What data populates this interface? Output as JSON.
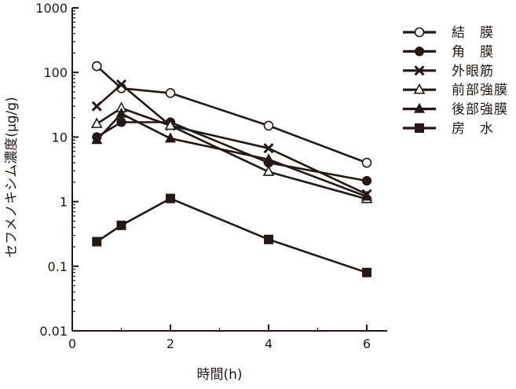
{
  "chart_data": {
    "type": "line",
    "title": "",
    "xlabel": "時間(h)",
    "ylabel": "セフメノキシム濃度(μg/g)",
    "xlim": [
      0,
      6
    ],
    "x_ticks": [
      0,
      2,
      4,
      6
    ],
    "x_tick_labels": [
      "0",
      "2",
      "4",
      "6"
    ],
    "ylim": [
      0.01,
      1000
    ],
    "yscale": "log",
    "y_ticks": [
      0.01,
      0.1,
      1,
      10,
      100,
      1000
    ],
    "y_tick_labels": [
      "0.01",
      "0.1",
      "1",
      "10",
      "100",
      "1000"
    ],
    "grid": false,
    "legend_position": "top-right",
    "line_color": "#231815",
    "x": [
      0.5,
      1,
      2,
      4,
      6
    ],
    "series": [
      {
        "name": "結　膜",
        "marker": "circle-open",
        "values": [
          125,
          57,
          48,
          15,
          4
        ]
      },
      {
        "name": "角　膜",
        "marker": "circle-filled",
        "values": [
          10,
          17,
          17,
          4,
          2.1
        ]
      },
      {
        "name": "外眼筋",
        "marker": "cross",
        "values": [
          30,
          65,
          15,
          6.7,
          1.3
        ]
      },
      {
        "name": "前部強膜",
        "marker": "triangle-open",
        "values": [
          16,
          28,
          15,
          2.9,
          1.1
        ]
      },
      {
        "name": "後部強膜",
        "marker": "triangle-filled",
        "values": [
          9,
          23,
          9.5,
          4.5,
          1.2
        ]
      },
      {
        "name": "房　水",
        "marker": "square-filled",
        "values": [
          0.24,
          0.43,
          1.12,
          0.26,
          0.08
        ]
      }
    ]
  }
}
